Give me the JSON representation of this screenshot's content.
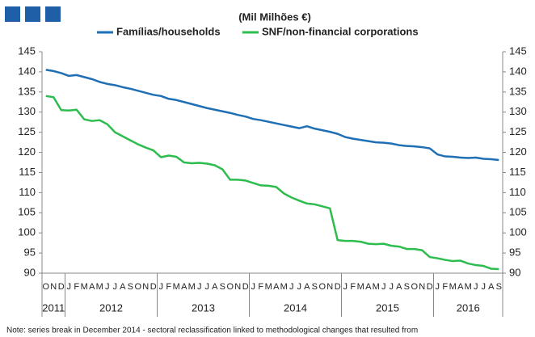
{
  "chart_data": {
    "type": "line",
    "title": "(Mil Milhões €)",
    "categories": [
      "O",
      "N",
      "D",
      "J",
      "F",
      "M",
      "A",
      "M",
      "J",
      "J",
      "A",
      "S",
      "O",
      "N",
      "D",
      "J",
      "F",
      "M",
      "A",
      "M",
      "J",
      "J",
      "A",
      "S",
      "O",
      "N",
      "D",
      "J",
      "F",
      "M",
      "A",
      "M",
      "J",
      "J",
      "A",
      "S",
      "O",
      "N",
      "D",
      "J",
      "F",
      "M",
      "A",
      "M",
      "J",
      "J",
      "A",
      "S",
      "O",
      "N",
      "D",
      "J",
      "F",
      "M",
      "A",
      "M",
      "J",
      "J",
      "A",
      "S"
    ],
    "years": [
      "2011",
      "2012",
      "2013",
      "2014",
      "2015",
      "2016"
    ],
    "series": [
      {
        "name": "Famílias/households",
        "color": "#1f6fb5",
        "values": [
          140.5,
          140.2,
          139.7,
          139.0,
          139.2,
          138.7,
          138.2,
          137.5,
          137.0,
          136.7,
          136.2,
          135.8,
          135.3,
          134.8,
          134.3,
          134.0,
          133.3,
          133.0,
          132.5,
          132.0,
          131.5,
          131.0,
          130.6,
          130.2,
          129.8,
          129.3,
          128.9,
          128.3,
          128.0,
          127.6,
          127.2,
          126.8,
          126.4,
          126.0,
          126.5,
          125.9,
          125.5,
          125.1,
          124.6,
          123.8,
          123.4,
          123.1,
          122.8,
          122.5,
          122.4,
          122.2,
          121.8,
          121.6,
          121.5,
          121.3,
          121.0,
          119.5,
          119.0,
          118.9,
          118.7,
          118.6,
          118.7,
          118.4,
          118.3,
          118.1
        ]
      },
      {
        "name": "SNF/non-financial corporations",
        "color": "#2dbd4e",
        "values": [
          134.0,
          133.7,
          130.5,
          130.4,
          130.6,
          128.2,
          127.8,
          128.0,
          127.0,
          125.0,
          124.0,
          123.0,
          122.0,
          121.2,
          120.5,
          118.8,
          119.2,
          118.9,
          117.5,
          117.3,
          117.4,
          117.2,
          116.8,
          115.8,
          113.2,
          113.2,
          113.0,
          112.4,
          111.8,
          111.7,
          111.4,
          109.8,
          108.8,
          108.0,
          107.3,
          107.1,
          106.6,
          106.1,
          98.2,
          98.0,
          98.0,
          97.8,
          97.3,
          97.2,
          97.3,
          96.8,
          96.6,
          96.0,
          96.0,
          95.7,
          94.0,
          93.7,
          93.3,
          93.0,
          93.1,
          92.4,
          92.0,
          91.8,
          91.1,
          91.0
        ]
      }
    ],
    "ylim": [
      90,
      145
    ],
    "yticks": [
      90,
      95,
      100,
      105,
      110,
      115,
      120,
      125,
      130,
      135,
      140,
      145
    ],
    "y2lim": [
      90,
      145
    ],
    "y2ticks": [
      90,
      95,
      100,
      105,
      110,
      115,
      120,
      125,
      130,
      135,
      140,
      145
    ],
    "note": "Note: series break in December 2014 - sectoral reclassification linked to methodological changes that resulted from"
  }
}
